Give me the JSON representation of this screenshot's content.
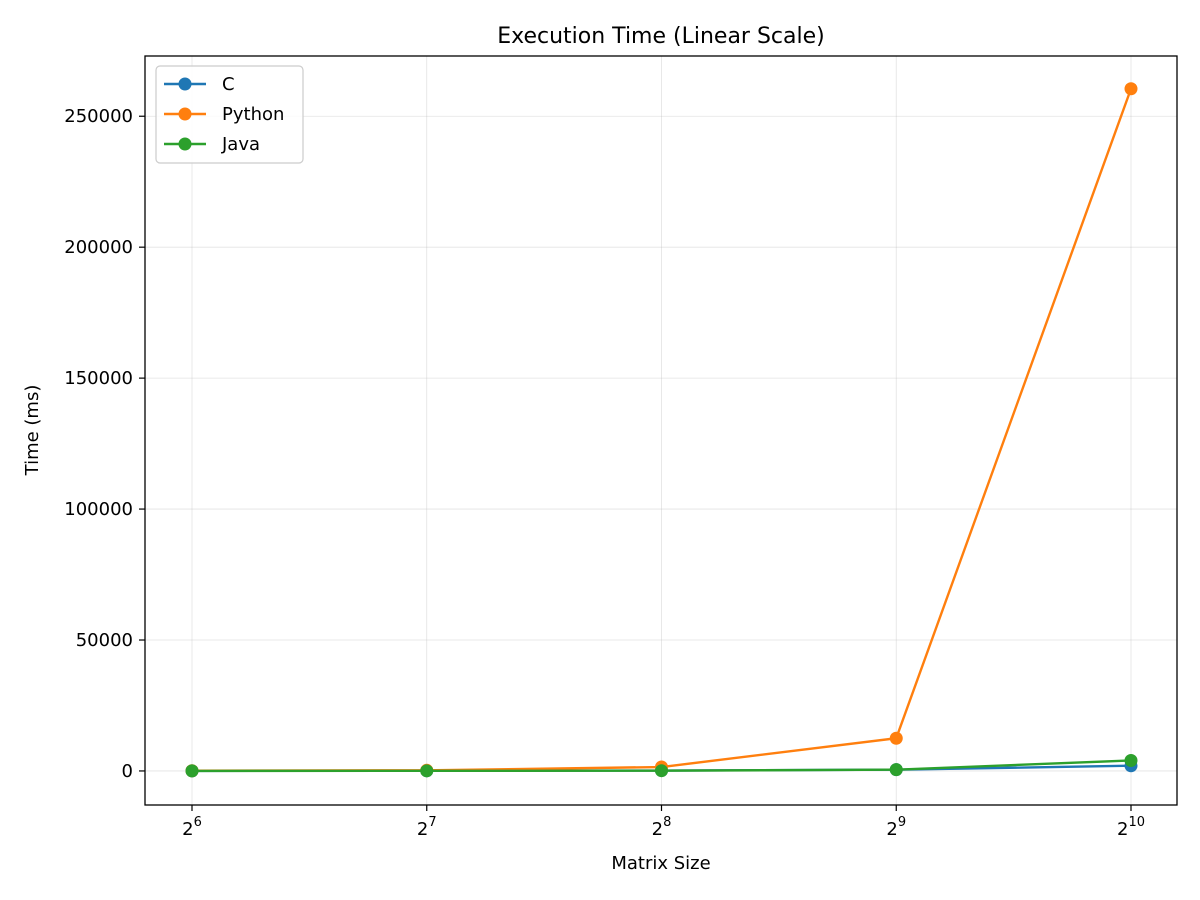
{
  "chart_data": {
    "type": "line",
    "title": "Execution Time (Linear Scale)",
    "xlabel": "Matrix Size",
    "ylabel": "Time (ms)",
    "x_scale": "log2",
    "x": [
      64,
      128,
      256,
      512,
      1024
    ],
    "x_ticks": [
      {
        "base": "2",
        "exp": "6"
      },
      {
        "base": "2",
        "exp": "7"
      },
      {
        "base": "2",
        "exp": "8"
      },
      {
        "base": "2",
        "exp": "9"
      },
      {
        "base": "2",
        "exp": "10"
      }
    ],
    "y_ticks": [
      "0",
      "50000",
      "100000",
      "150000",
      "200000",
      "250000"
    ],
    "ylim": [
      -13000,
      273000
    ],
    "grid": true,
    "legend_position": "top-left",
    "series": [
      {
        "name": "C",
        "color": "#1f77b4",
        "values": [
          30,
          60,
          150,
          500,
          2000
        ]
      },
      {
        "name": "Python",
        "color": "#ff7f0e",
        "values": [
          80,
          250,
          1500,
          12500,
          260500
        ]
      },
      {
        "name": "Java",
        "color": "#2ca02c",
        "values": [
          20,
          50,
          100,
          500,
          4000
        ]
      }
    ]
  }
}
